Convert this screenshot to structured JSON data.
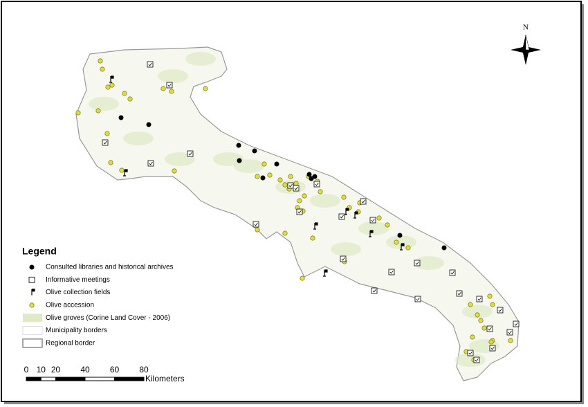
{
  "map": {
    "north": "N",
    "legend": {
      "title": "Legend",
      "items": [
        "Consulted libraries and historical archives",
        "Informative meetings",
        "Olive collection fields",
        "Olive accession",
        "Olive groves (Corine Land Cover - 2006)",
        "Municipality borders",
        "Regional border"
      ]
    },
    "scale": {
      "ticks": [
        0,
        10,
        20,
        40,
        60,
        80
      ],
      "unit": "Kilometers"
    }
  }
}
